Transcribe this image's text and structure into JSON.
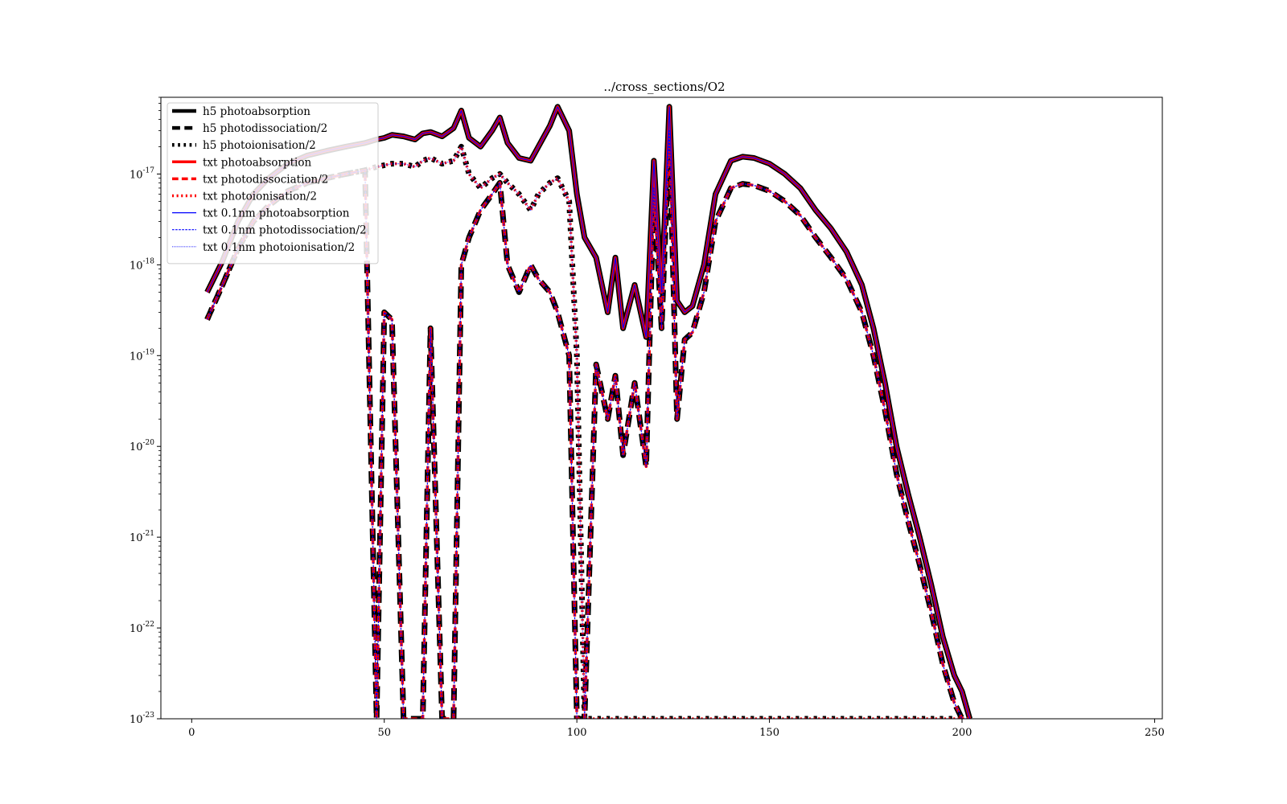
{
  "chart_data": {
    "type": "line",
    "title": "../cross_sections/O2",
    "xlabel": "",
    "ylabel": "",
    "xlim": [
      -8,
      252
    ],
    "ylim": [
      1e-23,
      7e-17
    ],
    "yscale": "log",
    "grid": false,
    "legend_position": "top-left",
    "x_ticks": [
      {
        "value": 0,
        "label": "0"
      },
      {
        "value": 50,
        "label": "50"
      },
      {
        "value": 100,
        "label": "100"
      },
      {
        "value": 150,
        "label": "150"
      },
      {
        "value": 200,
        "label": "200"
      },
      {
        "value": 250,
        "label": "250"
      }
    ],
    "y_ticks": [
      {
        "value": 1e-23,
        "base": "10",
        "exp": "-23"
      },
      {
        "value": 1e-22,
        "base": "10",
        "exp": "-22"
      },
      {
        "value": 1e-21,
        "base": "10",
        "exp": "-21"
      },
      {
        "value": 1e-20,
        "base": "10",
        "exp": "-20"
      },
      {
        "value": 1e-19,
        "base": "10",
        "exp": "-19"
      },
      {
        "value": 1e-18,
        "base": "10",
        "exp": "-18"
      },
      {
        "value": 1e-17,
        "base": "10",
        "exp": "-17"
      }
    ],
    "x": [
      4,
      8,
      12,
      16,
      20,
      25,
      30,
      35,
      40,
      45,
      48,
      50,
      52,
      55,
      58,
      60,
      62,
      65,
      68,
      70,
      72,
      75,
      78,
      80,
      82,
      85,
      88,
      90,
      93,
      95,
      98,
      100,
      102,
      105,
      108,
      110,
      112,
      115,
      118,
      120,
      122,
      124,
      126,
      128,
      130,
      133,
      136,
      140,
      143,
      146,
      150,
      154,
      158,
      162,
      166,
      170,
      174,
      177,
      180,
      183,
      186,
      189,
      192,
      195,
      198,
      200,
      202
    ],
    "series": [
      {
        "name": "h5 photoabsorption",
        "color": "#000000",
        "dash": "solid",
        "width": 7,
        "values": [
          5e-19,
          1.1e-18,
          3e-18,
          6e-18,
          9e-18,
          1.3e-17,
          1.6e-17,
          1.8e-17,
          2e-17,
          2.2e-17,
          2.4e-17,
          2.5e-17,
          2.7e-17,
          2.6e-17,
          2.4e-17,
          2.8e-17,
          2.9e-17,
          2.6e-17,
          3.2e-17,
          5e-17,
          2.5e-17,
          2e-17,
          3e-17,
          4.2e-17,
          2.2e-17,
          1.5e-17,
          1.4e-17,
          2e-17,
          3.4e-17,
          5.5e-17,
          3e-17,
          6e-18,
          2e-18,
          1.2e-18,
          3e-19,
          1.2e-18,
          2e-19,
          6e-19,
          1.6e-19,
          1.4e-17,
          5e-19,
          5.5e-17,
          4e-19,
          3e-19,
          3.5e-19,
          1e-18,
          6e-18,
          1.4e-17,
          1.55e-17,
          1.5e-17,
          1.3e-17,
          1e-17,
          7e-18,
          4e-18,
          2.5e-18,
          1.4e-18,
          6e-19,
          2e-19,
          5e-20,
          1e-20,
          3e-21,
          1e-21,
          3e-22,
          8e-23,
          3e-23,
          2e-23,
          1e-23
        ]
      },
      {
        "name": "h5 photodissociation/2",
        "color": "#000000",
        "dash": "dashed",
        "width": 7,
        "values": [
          2.5e-19,
          6e-19,
          1.5e-18,
          3e-18,
          4.5e-18,
          6.5e-18,
          8e-18,
          9e-18,
          1e-17,
          1.1e-17,
          1e-23,
          3e-19,
          2.5e-19,
          1e-23,
          1e-23,
          1e-23,
          2e-19,
          1e-23,
          1e-23,
          1e-18,
          2e-18,
          4e-18,
          6e-18,
          8e-18,
          1e-18,
          5e-19,
          1e-18,
          7e-19,
          5e-19,
          3e-19,
          1e-19,
          1e-23,
          1e-23,
          8e-20,
          2e-20,
          6e-20,
          8e-21,
          5e-20,
          6e-21,
          7e-18,
          2e-19,
          3e-17,
          2e-20,
          1.5e-19,
          1.8e-19,
          5e-19,
          3e-18,
          7e-18,
          7.8e-18,
          7.5e-18,
          6.5e-18,
          5e-18,
          3.5e-18,
          2e-18,
          1.2e-18,
          7e-19,
          3e-19,
          1e-19,
          2.5e-20,
          5e-21,
          1.5e-21,
          5e-22,
          1.5e-22,
          4e-23,
          1.5e-23,
          1e-23,
          1e-23
        ]
      },
      {
        "name": "h5 photoionisation/2",
        "color": "#000000",
        "dash": "dotted",
        "width": 7,
        "values": [
          2.5e-19,
          6e-19,
          1.5e-18,
          3e-18,
          4.5e-18,
          6.5e-18,
          8e-18,
          9e-18,
          1e-17,
          1.1e-17,
          1.2e-17,
          1.25e-17,
          1.3e-17,
          1.3e-17,
          1.2e-17,
          1.4e-17,
          1.5e-17,
          1.3e-17,
          1.4e-17,
          2e-17,
          1e-17,
          7e-18,
          9e-18,
          1e-17,
          8e-18,
          6e-18,
          4e-18,
          6e-18,
          8e-18,
          9e-18,
          5e-18,
          1e-19,
          1e-23,
          1e-23,
          1e-23,
          1e-23,
          1e-23,
          1e-23,
          1e-23,
          1e-23,
          1e-23,
          1e-23,
          1e-23,
          1e-23,
          1e-23,
          1e-23,
          1e-23,
          1e-23,
          1e-23,
          1e-23,
          1e-23,
          1e-23,
          1e-23,
          1e-23,
          1e-23,
          1e-23,
          1e-23,
          1e-23,
          1e-23,
          1e-23,
          1e-23,
          1e-23,
          1e-23,
          1e-23,
          1e-23,
          1e-23,
          1e-23
        ]
      },
      {
        "name": "txt photoabsorption",
        "color": "#ff0000",
        "dash": "solid",
        "width": 3.5,
        "values": [
          5e-19,
          1.1e-18,
          3e-18,
          6e-18,
          9e-18,
          1.3e-17,
          1.6e-17,
          1.8e-17,
          2e-17,
          2.2e-17,
          2.4e-17,
          2.5e-17,
          2.7e-17,
          2.6e-17,
          2.4e-17,
          2.8e-17,
          2.9e-17,
          2.6e-17,
          3.2e-17,
          5e-17,
          2.5e-17,
          2e-17,
          3e-17,
          4.2e-17,
          2.2e-17,
          1.5e-17,
          1.4e-17,
          2e-17,
          3.4e-17,
          5.5e-17,
          3e-17,
          6e-18,
          2e-18,
          1.2e-18,
          3e-19,
          1.2e-18,
          2e-19,
          6e-19,
          1.6e-19,
          1.4e-17,
          5e-19,
          5.5e-17,
          4e-19,
          3e-19,
          3.5e-19,
          1e-18,
          6e-18,
          1.4e-17,
          1.55e-17,
          1.5e-17,
          1.3e-17,
          1e-17,
          7e-18,
          4e-18,
          2.5e-18,
          1.4e-18,
          6e-19,
          2e-19,
          5e-20,
          1e-20,
          3e-21,
          1e-21,
          3e-22,
          8e-23,
          3e-23,
          2e-23,
          1e-23
        ]
      },
      {
        "name": "txt photodissociation/2",
        "color": "#ff0000",
        "dash": "dashed",
        "width": 3.5,
        "values": [
          2.5e-19,
          6e-19,
          1.5e-18,
          3e-18,
          4.5e-18,
          6.5e-18,
          8e-18,
          9e-18,
          1e-17,
          1.1e-17,
          1e-23,
          3e-19,
          2.5e-19,
          1e-23,
          1e-23,
          1e-23,
          2e-19,
          1e-23,
          1e-23,
          1e-18,
          2e-18,
          4e-18,
          6e-18,
          8e-18,
          1e-18,
          5e-19,
          1e-18,
          7e-19,
          5e-19,
          3e-19,
          1e-19,
          1e-23,
          1e-23,
          8e-20,
          2e-20,
          6e-20,
          8e-21,
          5e-20,
          6e-21,
          7e-18,
          2e-19,
          3e-17,
          2e-20,
          1.5e-19,
          1.8e-19,
          5e-19,
          3e-18,
          7e-18,
          7.8e-18,
          7.5e-18,
          6.5e-18,
          5e-18,
          3.5e-18,
          2e-18,
          1.2e-18,
          7e-19,
          3e-19,
          1e-19,
          2.5e-20,
          5e-21,
          1.5e-21,
          5e-22,
          1.5e-22,
          4e-23,
          1.5e-23,
          1e-23,
          1e-23
        ]
      },
      {
        "name": "txt photoionisation/2",
        "color": "#ff0000",
        "dash": "dotted",
        "width": 3.5,
        "values": [
          2.5e-19,
          6e-19,
          1.5e-18,
          3e-18,
          4.5e-18,
          6.5e-18,
          8e-18,
          9e-18,
          1e-17,
          1.1e-17,
          1.2e-17,
          1.25e-17,
          1.3e-17,
          1.3e-17,
          1.2e-17,
          1.4e-17,
          1.5e-17,
          1.3e-17,
          1.4e-17,
          2e-17,
          1e-17,
          7e-18,
          9e-18,
          1e-17,
          8e-18,
          6e-18,
          4e-18,
          6e-18,
          8e-18,
          9e-18,
          5e-18,
          1e-19,
          1e-23,
          1e-23,
          1e-23,
          1e-23,
          1e-23,
          1e-23,
          1e-23,
          1e-23,
          1e-23,
          1e-23,
          1e-23,
          1e-23,
          1e-23,
          1e-23,
          1e-23,
          1e-23,
          1e-23,
          1e-23,
          1e-23,
          1e-23,
          1e-23,
          1e-23,
          1e-23,
          1e-23,
          1e-23,
          1e-23,
          1e-23,
          1e-23,
          1e-23,
          1e-23,
          1e-23,
          1e-23,
          1e-23,
          1e-23,
          1e-23
        ]
      },
      {
        "name": "txt 0.1nm photoabsorption",
        "color": "#0000ff",
        "dash": "solid",
        "width": 1.2,
        "values": [
          5e-19,
          1.1e-18,
          3e-18,
          6e-18,
          9e-18,
          1.3e-17,
          1.6e-17,
          1.8e-17,
          2e-17,
          2.2e-17,
          2.4e-17,
          2.5e-17,
          2.7e-17,
          2.6e-17,
          2.4e-17,
          2.8e-17,
          2.9e-17,
          2.6e-17,
          3.2e-17,
          5e-17,
          2.5e-17,
          2e-17,
          3e-17,
          4.2e-17,
          2.2e-17,
          1.5e-17,
          1.4e-17,
          2e-17,
          3.4e-17,
          5.5e-17,
          3e-17,
          6e-18,
          2e-18,
          1.2e-18,
          3e-19,
          1.2e-18,
          2e-19,
          6e-19,
          1.6e-19,
          1.4e-17,
          5e-19,
          5.5e-17,
          4e-19,
          3e-19,
          3.5e-19,
          1e-18,
          6e-18,
          1.4e-17,
          1.55e-17,
          1.5e-17,
          1.3e-17,
          1e-17,
          7e-18,
          4e-18,
          2.5e-18,
          1.4e-18,
          6e-19,
          2e-19,
          5e-20,
          1e-20,
          3e-21,
          1e-21,
          3e-22,
          8e-23,
          3e-23,
          2e-23,
          1e-23
        ]
      },
      {
        "name": "txt 0.1nm photodissociation/2",
        "color": "#0000ff",
        "dash": "dashed",
        "width": 1.2,
        "values": [
          2.5e-19,
          6e-19,
          1.5e-18,
          3e-18,
          4.5e-18,
          6.5e-18,
          8e-18,
          9e-18,
          1e-17,
          1.1e-17,
          1e-23,
          3e-19,
          2.5e-19,
          1e-23,
          1e-23,
          1e-23,
          2e-19,
          1e-23,
          1e-23,
          1e-18,
          2e-18,
          4e-18,
          6e-18,
          8e-18,
          1e-18,
          5e-19,
          1e-18,
          7e-19,
          5e-19,
          3e-19,
          1e-19,
          1e-23,
          1e-23,
          8e-20,
          2e-20,
          6e-20,
          8e-21,
          5e-20,
          6e-21,
          7e-18,
          2e-19,
          3e-17,
          2e-20,
          1.5e-19,
          1.8e-19,
          5e-19,
          3e-18,
          7e-18,
          7.8e-18,
          7.5e-18,
          6.5e-18,
          5e-18,
          3.5e-18,
          2e-18,
          1.2e-18,
          7e-19,
          3e-19,
          1e-19,
          2.5e-20,
          5e-21,
          1.5e-21,
          5e-22,
          1.5e-22,
          4e-23,
          1.5e-23,
          1e-23,
          1e-23
        ]
      },
      {
        "name": "txt 0.1nm photoionisation/2",
        "color": "#0000ff",
        "dash": "dotted",
        "width": 1.2,
        "values": [
          2.5e-19,
          6e-19,
          1.5e-18,
          3e-18,
          4.5e-18,
          6.5e-18,
          8e-18,
          9e-18,
          1e-17,
          1.1e-17,
          1.2e-17,
          1.25e-17,
          1.3e-17,
          1.3e-17,
          1.2e-17,
          1.4e-17,
          1.5e-17,
          1.3e-17,
          1.4e-17,
          2e-17,
          1e-17,
          7e-18,
          9e-18,
          1e-17,
          8e-18,
          6e-18,
          4e-18,
          6e-18,
          8e-18,
          9e-18,
          5e-18,
          1e-19,
          1e-23,
          1e-23,
          1e-23,
          1e-23,
          1e-23,
          1e-23,
          1e-23,
          1e-23,
          1e-23,
          1e-23,
          1e-23,
          1e-23,
          1e-23,
          1e-23,
          1e-23,
          1e-23,
          1e-23,
          1e-23,
          1e-23,
          1e-23,
          1e-23,
          1e-23,
          1e-23,
          1e-23,
          1e-23,
          1e-23,
          1e-23,
          1e-23,
          1e-23,
          1e-23,
          1e-23,
          1e-23,
          1e-23,
          1e-23,
          1e-23
        ]
      }
    ]
  }
}
